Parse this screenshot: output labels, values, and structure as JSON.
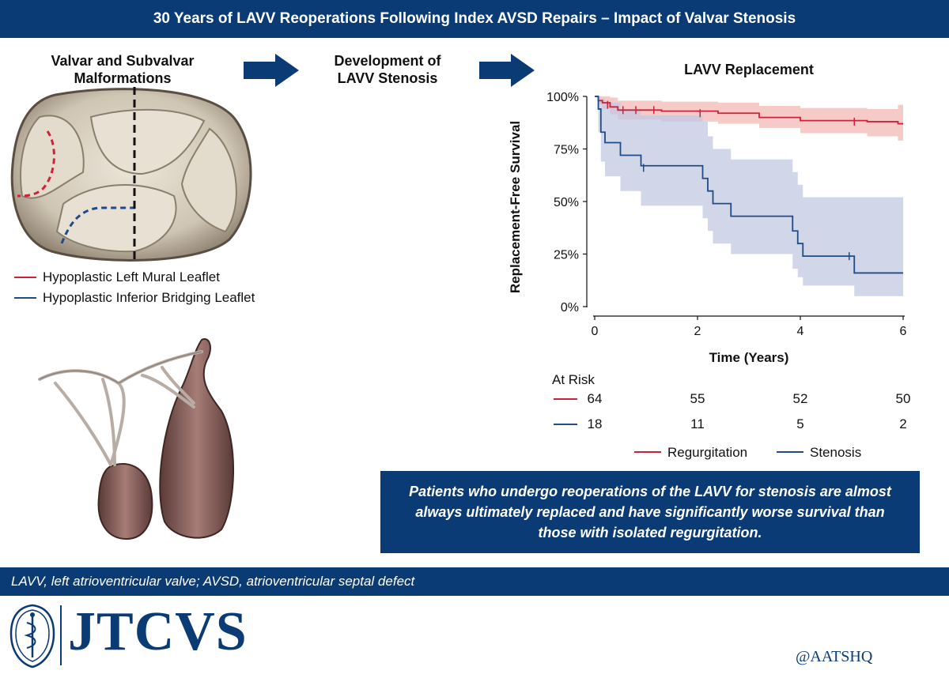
{
  "header": {
    "title": "30 Years of LAVV Reoperations Following Index AVSD Repairs – Impact of Valvar Stenosis"
  },
  "panels": {
    "malformations_title_line1": "Valvar and Subvalvar",
    "malformations_title_line2": "Malformations",
    "stenosis_title_line1": "Development of",
    "stenosis_title_line2": "LAVV Stenosis"
  },
  "valve_legend": [
    {
      "label": "Hypoplastic Left Mural Leaflet",
      "color": "#d0213b"
    },
    {
      "label": "Hypoplastic Inferior Bridging Leaflet",
      "color": "#1f4b86"
    }
  ],
  "chart_data": {
    "type": "line",
    "title": "LAVV Replacement",
    "xlabel": "Time (Years)",
    "ylabel": "Replacement-Free Survival",
    "xlim": [
      0,
      6
    ],
    "ylim": [
      0,
      100
    ],
    "x_ticks": [
      "0",
      "2",
      "4",
      "6"
    ],
    "y_ticks": [
      "0%",
      "25%",
      "50%",
      "75%",
      "100%"
    ],
    "series": [
      {
        "name": "Regurgitation",
        "color": "#d0213b",
        "band_color": "#f2b8b4",
        "steps": [
          [
            0,
            100
          ],
          [
            0.07,
            98
          ],
          [
            0.15,
            97
          ],
          [
            0.3,
            95
          ],
          [
            0.45,
            93.5
          ],
          [
            1.3,
            93
          ],
          [
            2.4,
            92
          ],
          [
            3.2,
            90
          ],
          [
            4.0,
            88.5
          ],
          [
            5.3,
            88
          ],
          [
            5.9,
            87
          ],
          [
            6.0,
            87
          ]
        ],
        "lower": [
          [
            0,
            100
          ],
          [
            0.07,
            96
          ],
          [
            0.15,
            94
          ],
          [
            0.3,
            91.5
          ],
          [
            0.45,
            89
          ],
          [
            1.3,
            88
          ],
          [
            2.4,
            87
          ],
          [
            3.2,
            85
          ],
          [
            4.0,
            82.5
          ],
          [
            5.3,
            81
          ],
          [
            5.9,
            79
          ],
          [
            6.0,
            79
          ]
        ],
        "upper": [
          [
            0,
            100
          ],
          [
            0.07,
            100
          ],
          [
            0.15,
            100
          ],
          [
            0.3,
            99.5
          ],
          [
            0.45,
            98
          ],
          [
            1.3,
            97.5
          ],
          [
            2.4,
            97
          ],
          [
            3.2,
            95.5
          ],
          [
            4.0,
            94.5
          ],
          [
            5.3,
            94
          ],
          [
            5.9,
            96
          ],
          [
            6.0,
            96
          ]
        ],
        "censors": [
          [
            0.25,
            96
          ],
          [
            0.55,
            93.5
          ],
          [
            0.8,
            93.5
          ],
          [
            1.15,
            93.5
          ],
          [
            2.05,
            92
          ],
          [
            5.05,
            88
          ]
        ]
      },
      {
        "name": "Stenosis",
        "color": "#1f4b86",
        "band_color": "#c3c8e2",
        "steps": [
          [
            0,
            100
          ],
          [
            0.07,
            94
          ],
          [
            0.12,
            83
          ],
          [
            0.2,
            78
          ],
          [
            0.5,
            72
          ],
          [
            0.9,
            67
          ],
          [
            2.1,
            61
          ],
          [
            2.2,
            55
          ],
          [
            2.3,
            49
          ],
          [
            2.65,
            43
          ],
          [
            3.85,
            36
          ],
          [
            3.95,
            30
          ],
          [
            4.05,
            24
          ],
          [
            5.05,
            16
          ],
          [
            6.0,
            16
          ]
        ],
        "lower": [
          [
            0,
            100
          ],
          [
            0.07,
            83
          ],
          [
            0.12,
            69
          ],
          [
            0.2,
            62
          ],
          [
            0.5,
            55
          ],
          [
            0.9,
            48
          ],
          [
            2.1,
            42
          ],
          [
            2.2,
            36
          ],
          [
            2.3,
            30
          ],
          [
            2.65,
            25
          ],
          [
            3.85,
            18
          ],
          [
            3.95,
            14
          ],
          [
            4.05,
            10
          ],
          [
            5.05,
            5
          ],
          [
            6.0,
            5
          ]
        ],
        "upper": [
          [
            0,
            100
          ],
          [
            0.07,
            100
          ],
          [
            0.12,
            99
          ],
          [
            0.2,
            97
          ],
          [
            0.5,
            94
          ],
          [
            0.9,
            91
          ],
          [
            2.1,
            88
          ],
          [
            2.2,
            81
          ],
          [
            2.3,
            75
          ],
          [
            2.65,
            70
          ],
          [
            3.85,
            64
          ],
          [
            3.95,
            58
          ],
          [
            4.05,
            52
          ],
          [
            5.05,
            52
          ],
          [
            6.0,
            52
          ]
        ],
        "censors": [
          [
            0.95,
            66
          ],
          [
            4.95,
            24
          ]
        ]
      }
    ],
    "at_risk": {
      "label": "At Risk",
      "times": [
        0,
        2,
        4,
        6
      ],
      "rows": [
        {
          "name": "Regurgitation",
          "color": "#d0213b",
          "values": [
            64,
            55,
            52,
            50
          ]
        },
        {
          "name": "Stenosis",
          "color": "#1f4b86",
          "values": [
            18,
            11,
            5,
            2
          ]
        }
      ]
    },
    "legend": {
      "position": "bottom",
      "items": [
        "Regurgitation",
        "Stenosis"
      ]
    }
  },
  "callout": {
    "text": "Patients who undergo reoperations of the LAVV for stenosis are almost always ultimately replaced and have significantly worse survival than those with isolated regurgitation."
  },
  "footer": {
    "abbreviations": "LAVV, left atrioventricular valve; AVSD, atrioventricular septal defect",
    "journal": "JTCVS",
    "handle": "@AATSHQ"
  },
  "colors": {
    "brand": "#0b3b74",
    "regurgitation": "#d0213b",
    "stenosis": "#1f4b86"
  }
}
